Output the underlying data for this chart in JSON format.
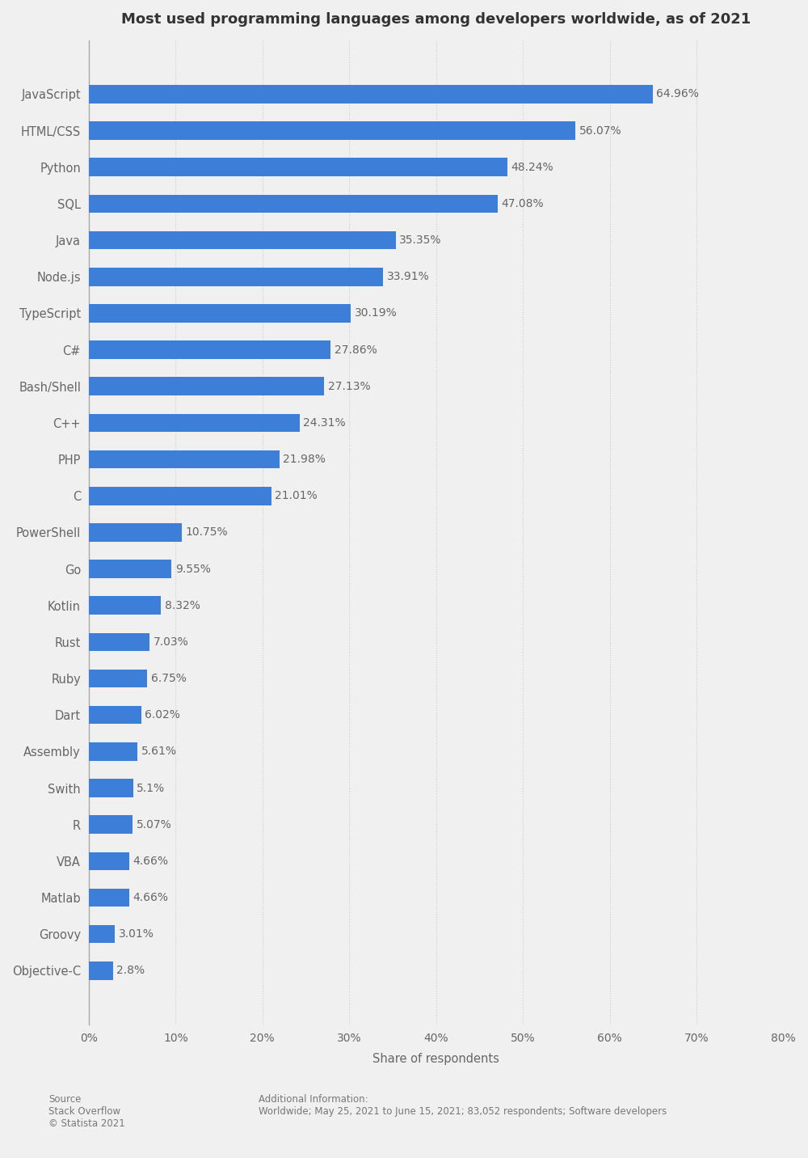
{
  "title": "Most used programming languages among developers worldwide, as of 2021",
  "categories": [
    "JavaScript",
    "HTML/CSS",
    "Python",
    "SQL",
    "Java",
    "Node.js",
    "TypeScript",
    "C#",
    "Bash/Shell",
    "C++",
    "PHP",
    "C",
    "PowerShell",
    "Go",
    "Kotlin",
    "Rust",
    "Ruby",
    "Dart",
    "Assembly",
    "Swith",
    "R",
    "VBA",
    "Matlab",
    "Groovy",
    "Objective-C"
  ],
  "values": [
    64.96,
    56.07,
    48.24,
    47.08,
    35.35,
    33.91,
    30.19,
    27.86,
    27.13,
    24.31,
    21.98,
    21.01,
    10.75,
    9.55,
    8.32,
    7.03,
    6.75,
    6.02,
    5.61,
    5.1,
    5.07,
    4.66,
    4.66,
    3.01,
    2.8
  ],
  "bar_color": "#3d7ed8",
  "label_color": "#666666",
  "title_color": "#333333",
  "background_color": "#f0f0f0",
  "plot_background_color": "#f0f0f0",
  "xlabel": "Share of respondents",
  "xlim": [
    0,
    80
  ],
  "xticks": [
    0,
    10,
    20,
    30,
    40,
    50,
    60,
    70,
    80
  ],
  "xtick_labels": [
    "0%",
    "10%",
    "20%",
    "30%",
    "40%",
    "50%",
    "60%",
    "70%",
    "80%"
  ],
  "grid_color": "#cccccc",
  "title_fontsize": 13,
  "label_fontsize": 10.5,
  "tick_fontsize": 10,
  "value_fontsize": 10,
  "bar_height": 0.5,
  "source_text": "Source\nStack Overflow\n© Statista 2021",
  "additional_info": "Additional Information:\nWorldwide; May 25, 2021 to June 15, 2021; 83,052 respondents; Software developers"
}
